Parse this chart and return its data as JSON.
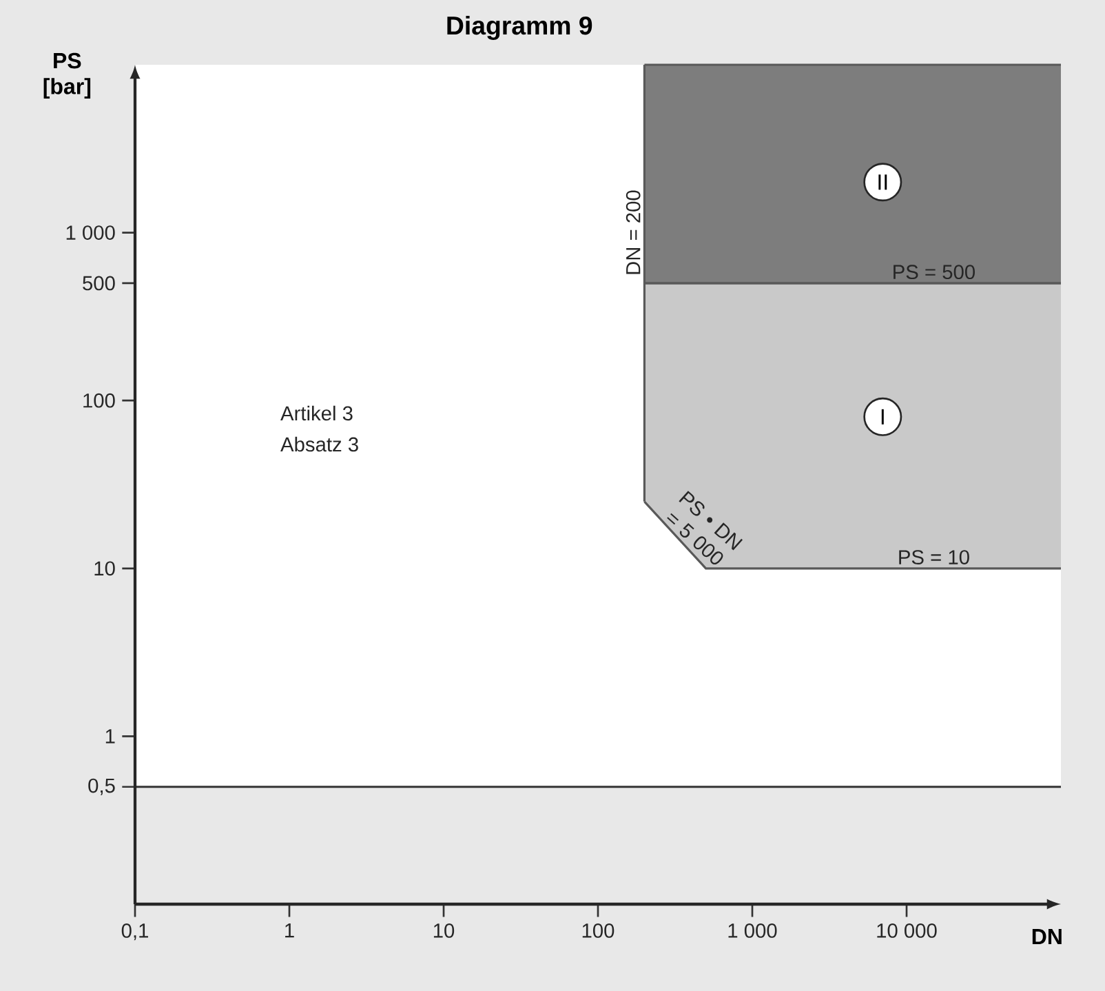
{
  "chart_data": {
    "type": "area",
    "title": "Diagramm 9",
    "xlabel": "DN",
    "ylabel": "PS [bar]",
    "log": "xy",
    "xlim": [
      0.1,
      100000
    ],
    "ylim": [
      0.1,
      10000
    ],
    "xticks": [
      {
        "value": 0.1,
        "label": "0,1"
      },
      1,
      10,
      100,
      {
        "value": 1000,
        "label": "1 000"
      },
      {
        "value": 10000,
        "label": "10 000"
      }
    ],
    "yticks": [
      {
        "value": 0.5,
        "label": "0,5"
      },
      1,
      10,
      100,
      500,
      {
        "value": 1000,
        "label": "1 000"
      }
    ],
    "series": [
      {
        "color": "#c9c9c9",
        "x": [
          200,
          500,
          100000
        ],
        "values": [
          null,
          null,
          null
        ],
        "lower": [
          25,
          10,
          10
        ],
        "upper": [
          500,
          500,
          500
        ]
      },
      {
        "color": "#7d7d7d",
        "x": [
          200,
          100000
        ],
        "values": [
          null,
          null
        ],
        "lower": [
          500,
          500
        ],
        "upper": [
          10000,
          10000
        ]
      }
    ],
    "bands": [
      {
        "axis": "y",
        "from": 0.5,
        "to": 10000,
        "color": "#ffffff"
      }
    ],
    "ref_lines": [
      {
        "axis": "y",
        "value": 0.5,
        "color": "#333333"
      }
    ],
    "annotations": [
      "Artikel 3",
      "Absatz 3",
      {
        "text": "II",
        "x": 7000,
        "y": 2000
      },
      {
        "text": "I",
        "x": 7000,
        "y": 80
      },
      {
        "text": "PS = 500",
        "x": 15000,
        "y": 500
      },
      {
        "text": "PS = 10",
        "x": 15000,
        "y": 10
      },
      {
        "text": "DN = 200",
        "x": 200,
        "y": 1000
      },
      {
        "text": "PS • DN = 5 000",
        "x": 300,
        "y": 16.7
      }
    ]
  }
}
